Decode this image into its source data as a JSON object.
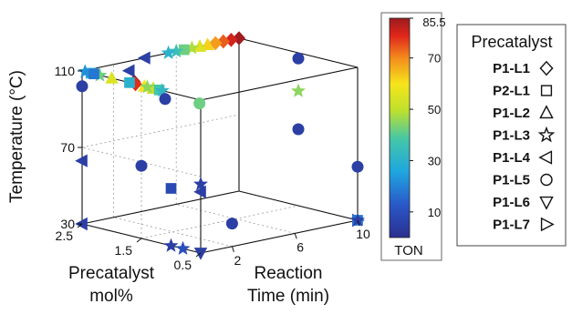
{
  "chart_data": {
    "type": "scatter3d",
    "axes": {
      "x": {
        "label_lines": [
          "Reaction",
          "Time (min)"
        ],
        "ticks": [
          2,
          6,
          10
        ],
        "range": [
          0,
          10
        ]
      },
      "y": {
        "label_lines": [
          "Precatalyst",
          "mol%"
        ],
        "ticks": [
          0.5,
          1.5,
          2.5
        ],
        "range": [
          0.5,
          2.5
        ]
      },
      "z": {
        "label": "Temperature (°C)",
        "ticks": [
          30,
          70,
          110
        ],
        "range": [
          30,
          110
        ]
      }
    },
    "colorbar": {
      "title": "TON",
      "ticks": [
        10,
        30,
        50,
        70,
        85.5
      ],
      "tick_labels": [
        "10",
        "30",
        "50",
        "70",
        "85.5"
      ],
      "range": [
        0,
        85.5
      ]
    },
    "legend": {
      "title": "Precatalyst",
      "placement": "right",
      "entries": [
        {
          "label": "P1-L1",
          "marker": "diamond"
        },
        {
          "label": "P2-L1",
          "marker": "square"
        },
        {
          "label": "P1-L2",
          "marker": "triangle-up"
        },
        {
          "label": "P1-L3",
          "marker": "star"
        },
        {
          "label": "P1-L4",
          "marker": "triangle-left"
        },
        {
          "label": "P1-L5",
          "marker": "circle"
        },
        {
          "label": "P1-L6",
          "marker": "triangle-down"
        },
        {
          "label": "P1-L7",
          "marker": "triangle-right"
        }
      ]
    },
    "grid": true,
    "points": [
      {
        "marker": "diamond",
        "t": 10,
        "mol": 2.5,
        "temp": 110,
        "ton": 85
      },
      {
        "marker": "diamond",
        "t": 9.5,
        "mol": 2.5,
        "temp": 110,
        "ton": 80
      },
      {
        "marker": "diamond",
        "t": 9,
        "mol": 2.5,
        "temp": 110,
        "ton": 74
      },
      {
        "marker": "diamond",
        "t": 8.5,
        "mol": 2.5,
        "temp": 110,
        "ton": 68
      },
      {
        "marker": "triangle-up",
        "t": 8,
        "mol": 2.5,
        "temp": 110,
        "ton": 62
      },
      {
        "marker": "triangle-up",
        "t": 7.5,
        "mol": 2.5,
        "temp": 110,
        "ton": 55
      },
      {
        "marker": "star",
        "t": 7,
        "mol": 2.5,
        "temp": 110,
        "ton": 48
      },
      {
        "marker": "square",
        "t": 6.5,
        "mol": 2.5,
        "temp": 110,
        "ton": 42
      },
      {
        "marker": "star",
        "t": 6,
        "mol": 2.5,
        "temp": 110,
        "ton": 35
      },
      {
        "marker": "star",
        "t": 5.5,
        "mol": 2.5,
        "temp": 110,
        "ton": 30
      },
      {
        "marker": "triangle-left",
        "t": 4,
        "mol": 2.5,
        "temp": 110,
        "ton": 5
      },
      {
        "marker": "diamond",
        "t": 0.3,
        "mol": 1.7,
        "temp": 110,
        "ton": 85
      },
      {
        "marker": "diamond",
        "t": 0,
        "mol": 1.6,
        "temp": 110,
        "ton": 78
      },
      {
        "marker": "triangle-up",
        "t": 0,
        "mol": 1.45,
        "temp": 110,
        "ton": 60
      },
      {
        "marker": "triangle-up",
        "t": 0,
        "mol": 1.3,
        "temp": 110,
        "ton": 52
      },
      {
        "marker": "star",
        "t": 0,
        "mol": 1.4,
        "temp": 110,
        "ton": 45
      },
      {
        "marker": "square",
        "t": 0,
        "mol": 1.2,
        "temp": 110,
        "ton": 38
      },
      {
        "marker": "star",
        "t": 0,
        "mol": 1.15,
        "temp": 110,
        "ton": 32
      },
      {
        "marker": "square",
        "t": 0,
        "mol": 1.7,
        "temp": 110,
        "ton": 30
      },
      {
        "marker": "star",
        "t": 0,
        "mol": 2.2,
        "temp": 110,
        "ton": 42
      },
      {
        "marker": "triangle-up",
        "t": 0,
        "mol": 2.0,
        "temp": 110,
        "ton": 55
      },
      {
        "marker": "square",
        "t": 0,
        "mol": 2.35,
        "temp": 110,
        "ton": 28
      },
      {
        "marker": "star",
        "t": 0,
        "mol": 2.45,
        "temp": 110,
        "ton": 22
      },
      {
        "marker": "square",
        "t": 0,
        "mol": 2.3,
        "temp": 110,
        "ton": 18
      },
      {
        "marker": "circle",
        "t": 0,
        "mol": 1.1,
        "temp": 106,
        "ton": 5
      },
      {
        "marker": "circle",
        "t": 0.3,
        "mol": 0.6,
        "temp": 107,
        "ton": 42
      },
      {
        "marker": "circle",
        "t": 10,
        "mol": 1.5,
        "temp": 107,
        "ton": 5
      },
      {
        "marker": "star",
        "t": 10,
        "mol": 1.5,
        "temp": 90,
        "ton": 45
      },
      {
        "marker": "circle",
        "t": 10,
        "mol": 1.5,
        "temp": 70,
        "ton": 5
      },
      {
        "marker": "circle",
        "t": 10,
        "mol": 0.5,
        "temp": 58,
        "ton": 5
      },
      {
        "marker": "triangle-right",
        "t": 10,
        "mol": 0.5,
        "temp": 30,
        "ton": 5
      },
      {
        "marker": "square",
        "t": 10,
        "mol": 0.5,
        "temp": 30,
        "ton": 18
      },
      {
        "marker": "star",
        "t": 10,
        "mol": 0.5,
        "temp": 30,
        "ton": 5
      },
      {
        "marker": "triangle-left",
        "t": 3,
        "mol": 2.5,
        "temp": 105,
        "ton": 5
      },
      {
        "marker": "circle",
        "t": 0,
        "mol": 2.5,
        "temp": 102,
        "ton": 5
      },
      {
        "marker": "triangle-left",
        "t": 0,
        "mol": 2.5,
        "temp": 63,
        "ton": 5
      },
      {
        "marker": "circle",
        "t": 0,
        "mol": 1.5,
        "temp": 68,
        "ton": 5
      },
      {
        "marker": "square",
        "t": 0,
        "mol": 1.0,
        "temp": 60,
        "ton": 8
      },
      {
        "marker": "star",
        "t": 0,
        "mol": 0.5,
        "temp": 66,
        "ton": 5
      },
      {
        "marker": "triangle-left",
        "t": 0,
        "mol": 0.5,
        "temp": 62,
        "ton": 5
      },
      {
        "marker": "triangle-left",
        "t": 0,
        "mol": 2.5,
        "temp": 30,
        "ton": 5
      },
      {
        "marker": "circle",
        "t": 2,
        "mol": 0.5,
        "temp": 42,
        "ton": 5
      },
      {
        "marker": "star",
        "t": 0,
        "mol": 1.0,
        "temp": 30,
        "ton": 5
      },
      {
        "marker": "triangle-down",
        "t": 0,
        "mol": 0.5,
        "temp": 30,
        "ton": 5
      },
      {
        "marker": "star",
        "t": 0,
        "mol": 0.8,
        "temp": 30,
        "ton": 10
      }
    ]
  }
}
